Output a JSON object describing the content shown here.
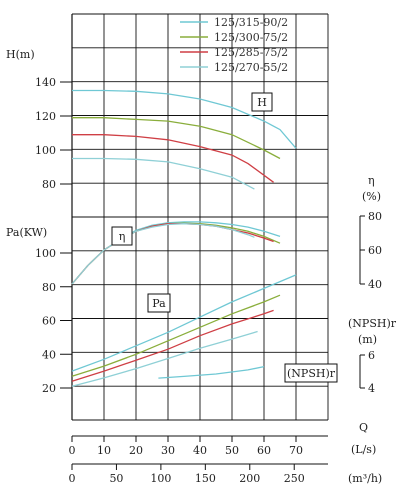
{
  "chart_data": {
    "type": "line",
    "legend": [
      {
        "name": "125/315-90/2",
        "color": "#6fc8d4"
      },
      {
        "name": "125/300-75/2",
        "color": "#8aae3c"
      },
      {
        "name": "125/285-75/2",
        "color": "#cf3f45"
      },
      {
        "name": "125/270-55/2",
        "color": "#8fd0d6"
      }
    ],
    "x_axis": {
      "ls": {
        "label": "Q",
        "unit": "(L/s)",
        "ticks": [
          "0",
          "10",
          "20",
          "30",
          "40",
          "50",
          "60",
          "70"
        ],
        "range": [
          0,
          80
        ]
      },
      "m3h": {
        "unit": "(m³/h)",
        "ticks": [
          "0",
          "50",
          "100",
          "150",
          "200",
          "250"
        ],
        "range": [
          0,
          288
        ]
      }
    },
    "axes": {
      "H": {
        "label": "H(m)",
        "ticks": [
          "140",
          "120",
          "100",
          "80"
        ],
        "range": [
          80,
          140
        ],
        "box_label": "H"
      },
      "eta": {
        "label": "η",
        "unit": "(%)",
        "ticks": [
          "80",
          "60",
          "40"
        ],
        "range": [
          40,
          80
        ],
        "box_label": "η"
      },
      "Pa": {
        "label": "Pa(KW)",
        "ticks": [
          "100",
          "80",
          "60",
          "40",
          "20"
        ],
        "range": [
          20,
          100
        ],
        "box_label": "Pa"
      },
      "NPSH": {
        "label": "(NPSH)r",
        "unit": "(m)",
        "ticks": [
          "6",
          "4"
        ],
        "range": [
          4,
          6
        ],
        "box_label": "(NPSH)r"
      }
    },
    "series": [
      {
        "name": "125/315-90/2",
        "color": "#6fc8d4",
        "H": [
          [
            0,
            135
          ],
          [
            10,
            135
          ],
          [
            20,
            134.5
          ],
          [
            30,
            133
          ],
          [
            40,
            130
          ],
          [
            50,
            125
          ],
          [
            60,
            117
          ],
          [
            65,
            112
          ],
          [
            70,
            101
          ]
        ],
        "eta": [
          [
            0,
            40
          ],
          [
            5,
            51
          ],
          [
            10,
            60
          ],
          [
            15,
            66
          ],
          [
            20,
            71.5
          ],
          [
            25,
            74.5
          ],
          [
            30,
            76
          ],
          [
            35,
            76.5
          ],
          [
            40,
            76.5
          ],
          [
            45,
            76
          ],
          [
            50,
            75
          ],
          [
            55,
            73.5
          ],
          [
            60,
            71
          ],
          [
            65,
            68
          ]
        ],
        "Pa": [
          [
            0,
            30
          ],
          [
            10,
            37
          ],
          [
            20,
            45
          ],
          [
            30,
            53
          ],
          [
            40,
            62
          ],
          [
            50,
            71
          ],
          [
            60,
            79
          ],
          [
            70,
            87
          ]
        ],
        "NPSH": [
          [
            27,
            4.6
          ],
          [
            35,
            4.7
          ],
          [
            45,
            4.85
          ],
          [
            55,
            5.1
          ],
          [
            60,
            5.3
          ]
        ]
      },
      {
        "name": "125/300-75/2",
        "color": "#8aae3c",
        "H": [
          [
            0,
            119
          ],
          [
            10,
            119
          ],
          [
            20,
            118
          ],
          [
            30,
            117
          ],
          [
            40,
            114
          ],
          [
            50,
            109
          ],
          [
            60,
            100
          ],
          [
            65,
            95
          ]
        ],
        "eta": [
          [
            0,
            40
          ],
          [
            5,
            51
          ],
          [
            10,
            60
          ],
          [
            15,
            66
          ],
          [
            20,
            71
          ],
          [
            25,
            74
          ],
          [
            30,
            75.5
          ],
          [
            35,
            75.8
          ],
          [
            40,
            75.5
          ],
          [
            45,
            74.5
          ],
          [
            50,
            73
          ],
          [
            55,
            71
          ],
          [
            60,
            68
          ],
          [
            65,
            64
          ]
        ],
        "Pa": [
          [
            0,
            27
          ],
          [
            10,
            33
          ],
          [
            20,
            40
          ],
          [
            30,
            48
          ],
          [
            40,
            56
          ],
          [
            50,
            64
          ],
          [
            60,
            71
          ],
          [
            65,
            75
          ]
        ]
      },
      {
        "name": "125/285-75/2",
        "color": "#cf3f45",
        "H": [
          [
            0,
            109
          ],
          [
            10,
            109
          ],
          [
            20,
            108
          ],
          [
            30,
            106
          ],
          [
            40,
            102
          ],
          [
            50,
            97
          ],
          [
            55,
            92
          ],
          [
            63,
            81
          ]
        ],
        "eta": [
          [
            0,
            40
          ],
          [
            5,
            51
          ],
          [
            10,
            60
          ],
          [
            15,
            66
          ],
          [
            20,
            71
          ],
          [
            25,
            74
          ],
          [
            30,
            75.5
          ],
          [
            35,
            75.5
          ],
          [
            40,
            75
          ],
          [
            45,
            74
          ],
          [
            50,
            72
          ],
          [
            55,
            70
          ],
          [
            60,
            67
          ],
          [
            63,
            65
          ]
        ],
        "Pa": [
          [
            0,
            24
          ],
          [
            10,
            30
          ],
          [
            20,
            36.5
          ],
          [
            30,
            43
          ],
          [
            40,
            51
          ],
          [
            50,
            58
          ],
          [
            60,
            64
          ],
          [
            63,
            66
          ]
        ]
      },
      {
        "name": "125/270-55/2",
        "color": "#8fd0d6",
        "H": [
          [
            0,
            95
          ],
          [
            10,
            95
          ],
          [
            20,
            94.5
          ],
          [
            30,
            93
          ],
          [
            40,
            89
          ],
          [
            50,
            84
          ],
          [
            57,
            77
          ]
        ],
        "eta": [
          [
            0,
            40
          ],
          [
            5,
            51
          ],
          [
            10,
            60
          ],
          [
            15,
            66
          ],
          [
            20,
            71
          ],
          [
            25,
            73.5
          ],
          [
            30,
            75
          ],
          [
            35,
            75.5
          ],
          [
            40,
            75
          ],
          [
            45,
            74
          ],
          [
            50,
            72
          ],
          [
            55,
            69
          ],
          [
            57,
            67.5
          ]
        ],
        "Pa": [
          [
            0,
            21
          ],
          [
            10,
            26
          ],
          [
            20,
            31.5
          ],
          [
            30,
            37.5
          ],
          [
            40,
            43.5
          ],
          [
            50,
            49
          ],
          [
            58,
            53.5
          ]
        ]
      }
    ]
  }
}
